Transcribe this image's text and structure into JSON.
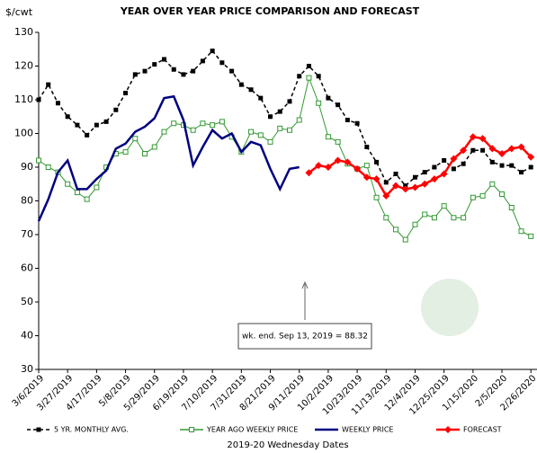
{
  "chart_data": {
    "type": "line",
    "title": "YEAR OVER YEAR PRICE COMPARISON AND FORECAST",
    "y_label": "$/cwt",
    "x_label": "2019-20 Wednesday Dates",
    "annotation": "wk. end. Sep 13, 2019 = 88.32",
    "categories": [
      "3/6/2019",
      null,
      null,
      "3/27/2019",
      null,
      null,
      "4/17/2019",
      null,
      null,
      "5/8/2019",
      null,
      null,
      "5/29/2019",
      null,
      null,
      "6/19/2019",
      null,
      null,
      "7/10/2019",
      null,
      null,
      "7/31/2019",
      null,
      null,
      "8/21/2019",
      null,
      null,
      "9/11/2019",
      null,
      null,
      "10/2/2019",
      null,
      null,
      "10/23/2019",
      null,
      null,
      "11/13/2019",
      null,
      null,
      "12/4/2019",
      null,
      null,
      "12/25/2019",
      null,
      null,
      "1/15/2020",
      null,
      null,
      "2/5/2020",
      null,
      null,
      "2/26/2020"
    ],
    "ylim": [
      30,
      130
    ],
    "yticks": [
      30,
      40,
      50,
      60,
      70,
      80,
      90,
      100,
      110,
      120,
      130
    ],
    "series": [
      {
        "name": "5 YR. MONTHLY AVG.",
        "color": "#000000",
        "dashed": true,
        "marker": "square-filled",
        "values": [
          110,
          114.5,
          109,
          105,
          102.5,
          99.5,
          102.5,
          103.5,
          107,
          112,
          117.5,
          118.5,
          120.5,
          122,
          119,
          117.5,
          118.5,
          121.5,
          124.5,
          121,
          118.5,
          114.5,
          113,
          110.5,
          105,
          106.5,
          109.5,
          117,
          120,
          117,
          110.5,
          108.5,
          104,
          103,
          96,
          91.5,
          85.5,
          88,
          84.5,
          87,
          88.5,
          90,
          92,
          89.5,
          91,
          95,
          95,
          91.5,
          90.5,
          90.5,
          88.5,
          90
        ]
      },
      {
        "name": "YEAR AGO WEEKLY PRICE",
        "color": "#339933",
        "dashed": false,
        "marker": "square-open",
        "values": [
          92,
          90,
          88.5,
          85,
          82.5,
          80.5,
          84,
          90,
          94,
          94.5,
          98.5,
          94,
          96,
          100.5,
          103,
          102.5,
          101,
          103,
          102.5,
          103.5,
          99,
          94.5,
          100.5,
          99.5,
          97.5,
          101.5,
          101,
          104,
          116.5,
          109,
          99,
          97.5,
          91,
          89.5,
          90.5,
          81,
          75,
          71.5,
          68.5,
          73,
          76,
          75,
          78.5,
          75,
          75,
          81,
          81.5,
          85,
          82,
          78,
          71,
          69.5
        ]
      },
      {
        "name": "WEEKLY PRICE",
        "color": "#000080",
        "dashed": false,
        "marker": "none",
        "values": [
          74,
          80.5,
          88.5,
          92,
          83.5,
          83.5,
          86.5,
          89,
          95.5,
          97,
          100.5,
          102,
          104.5,
          110.5,
          111,
          104,
          90.5,
          96,
          101,
          98.5,
          100,
          94.5,
          97.5,
          96.5,
          89.5,
          83.5,
          89.5,
          90,
          null,
          null,
          null,
          null,
          null,
          null,
          null,
          null,
          null,
          null,
          null,
          null,
          null,
          null,
          null,
          null,
          null,
          null,
          null,
          null,
          null,
          null,
          null,
          null
        ]
      },
      {
        "name": "FORECAST",
        "color": "#ff0000",
        "dashed": false,
        "marker": "diamond",
        "values": [
          null,
          null,
          null,
          null,
          null,
          null,
          null,
          null,
          null,
          null,
          null,
          null,
          null,
          null,
          null,
          null,
          null,
          null,
          null,
          null,
          null,
          null,
          null,
          null,
          null,
          null,
          null,
          null,
          88.32,
          90.5,
          90,
          92,
          91.5,
          89.5,
          87,
          86.5,
          81.5,
          84.5,
          83.5,
          84,
          85,
          86.5,
          88,
          92.5,
          95,
          99,
          98.5,
          95.5,
          94,
          95.5,
          96,
          93
        ]
      }
    ]
  }
}
